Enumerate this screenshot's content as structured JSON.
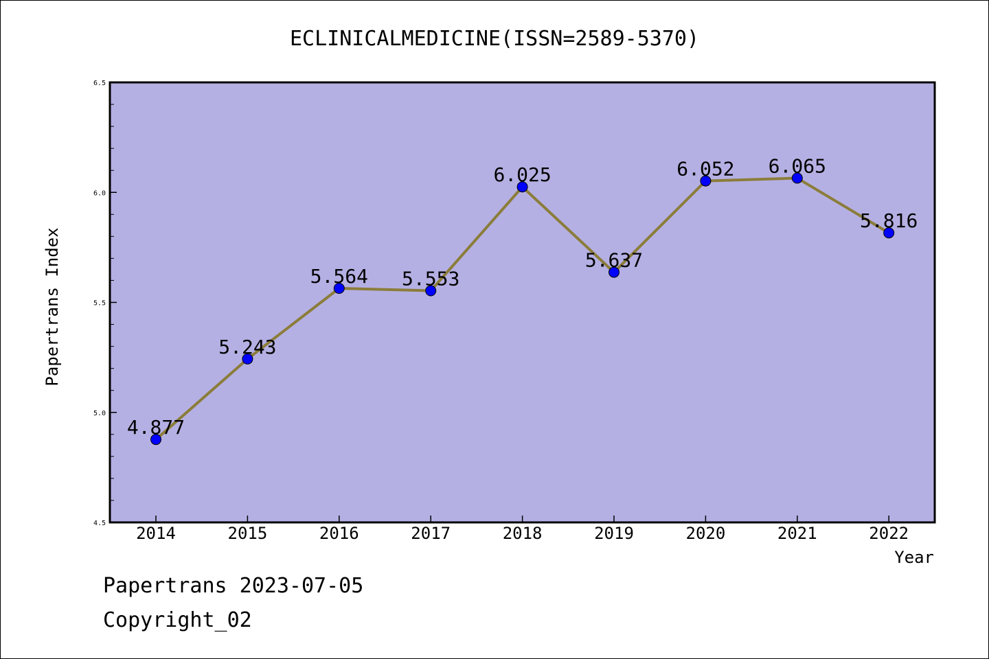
{
  "chart_data": {
    "type": "line",
    "title": "ECLINICALMEDICINE(ISSN=2589-5370)",
    "xlabel": "Year",
    "ylabel": "Papertrans Index",
    "categories": [
      "2014",
      "2015",
      "2016",
      "2017",
      "2018",
      "2019",
      "2020",
      "2021",
      "2022"
    ],
    "series": [
      {
        "values": [
          4.877,
          5.243,
          5.564,
          5.553,
          6.025,
          5.637,
          6.052,
          6.065,
          5.816
        ],
        "labels": [
          "4.877",
          "5.243",
          "5.564",
          "5.553",
          "6.025",
          "5.637",
          "6.052",
          "6.065",
          "5.816"
        ]
      }
    ],
    "ylim": [
      4.5,
      6.5
    ],
    "yticks": [
      "4.5",
      "5.0",
      "5.5",
      "6.0",
      "6.5"
    ],
    "grid": false,
    "colors": {
      "plot_background": "#b5b0e3",
      "line": "#8b7d3a",
      "marker": "#0000ff"
    }
  },
  "footer": {
    "line1": "Papertrans 2023-07-05",
    "line2": "Copyright_02"
  }
}
